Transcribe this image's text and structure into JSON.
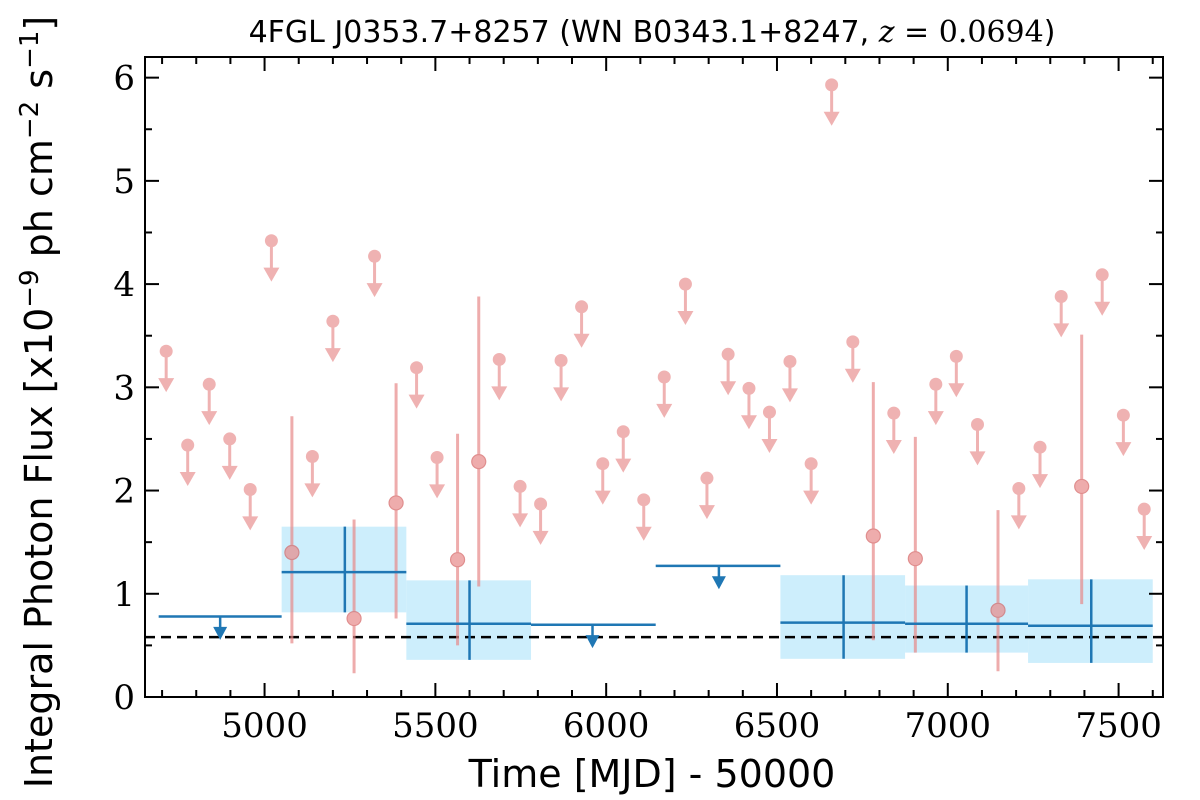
{
  "chart_data": {
    "type": "scatter",
    "title": "4FGL J0353.7+8257 (WN B0343.1+8247, z = 0.0694)",
    "title_parts": {
      "prefix": "4FGL J0353.7+8257 (WN B0343.1+8247, ",
      "z_symbol": "z",
      "z_equals": " = ",
      "z_value": "0.0694",
      "suffix": ")"
    },
    "xlabel": "Time [MJD] - 50000",
    "ylabel": "Integral Photon Flux [x10",
    "ylabel_parts": {
      "prefix": "Integral Photon Flux [x10",
      "exp1": "−9",
      "middle": " ph cm",
      "exp2": "−2",
      "after": " s",
      "exp3": "−1",
      "suffix": "]"
    },
    "xlim": [
      4650,
      7630
    ],
    "ylim": [
      0,
      6.2
    ],
    "xticks": [
      5000,
      5500,
      6000,
      6500,
      7000,
      7500
    ],
    "yticks": [
      0,
      1,
      2,
      3,
      4,
      5,
      6
    ],
    "grid": false,
    "mean_line_y": 0.58,
    "colors": {
      "short_bin": "#e88a8a",
      "long_bin": "#1f77b4",
      "band": "#cdeefc",
      "mean": "#000000"
    },
    "series": [
      {
        "kind": "short_bins",
        "detections": [
          {
            "x": 5080,
            "y": 1.4,
            "ylo": 0.52,
            "yhi": 2.72
          },
          {
            "x": 5262,
            "y": 0.76,
            "ylo": 0.23,
            "yhi": 1.72
          },
          {
            "x": 5385,
            "y": 1.88,
            "ylo": 0.76,
            "yhi": 3.04
          },
          {
            "x": 5565,
            "y": 1.33,
            "ylo": 0.5,
            "yhi": 2.55
          },
          {
            "x": 5627,
            "y": 2.28,
            "ylo": 1.07,
            "yhi": 3.88
          },
          {
            "x": 6782,
            "y": 1.56,
            "ylo": 0.55,
            "yhi": 3.05
          },
          {
            "x": 6905,
            "y": 1.34,
            "ylo": 0.43,
            "yhi": 2.52
          },
          {
            "x": 7147,
            "y": 0.84,
            "ylo": 0.25,
            "yhi": 1.81
          },
          {
            "x": 7392,
            "y": 2.04,
            "ylo": 0.9,
            "yhi": 3.51
          }
        ],
        "upper_limits": [
          {
            "x": 4712,
            "y": 3.35
          },
          {
            "x": 4775,
            "y": 2.44
          },
          {
            "x": 4838,
            "y": 3.03
          },
          {
            "x": 4898,
            "y": 2.5
          },
          {
            "x": 4958,
            "y": 2.01
          },
          {
            "x": 5020,
            "y": 4.42
          },
          {
            "x": 5140,
            "y": 2.33
          },
          {
            "x": 5200,
            "y": 3.64
          },
          {
            "x": 5322,
            "y": 4.27
          },
          {
            "x": 5445,
            "y": 3.19
          },
          {
            "x": 5505,
            "y": 2.32
          },
          {
            "x": 5687,
            "y": 3.27
          },
          {
            "x": 5748,
            "y": 2.04
          },
          {
            "x": 5808,
            "y": 1.87
          },
          {
            "x": 5868,
            "y": 3.26
          },
          {
            "x": 5928,
            "y": 3.78
          },
          {
            "x": 5990,
            "y": 2.26
          },
          {
            "x": 6050,
            "y": 2.57
          },
          {
            "x": 6110,
            "y": 1.91
          },
          {
            "x": 6170,
            "y": 3.1
          },
          {
            "x": 6232,
            "y": 4.0
          },
          {
            "x": 6295,
            "y": 2.12
          },
          {
            "x": 6357,
            "y": 3.32
          },
          {
            "x": 6418,
            "y": 2.99
          },
          {
            "x": 6478,
            "y": 2.76
          },
          {
            "x": 6538,
            "y": 3.25
          },
          {
            "x": 6600,
            "y": 2.26
          },
          {
            "x": 6660,
            "y": 5.93
          },
          {
            "x": 6722,
            "y": 3.44
          },
          {
            "x": 6842,
            "y": 2.75
          },
          {
            "x": 6965,
            "y": 3.03
          },
          {
            "x": 7025,
            "y": 3.3
          },
          {
            "x": 7087,
            "y": 2.64
          },
          {
            "x": 7208,
            "y": 2.02
          },
          {
            "x": 7270,
            "y": 2.42
          },
          {
            "x": 7332,
            "y": 3.88
          },
          {
            "x": 7452,
            "y": 4.09
          },
          {
            "x": 7514,
            "y": 2.73
          },
          {
            "x": 7575,
            "y": 1.82
          }
        ]
      },
      {
        "kind": "long_bins",
        "detections": [
          {
            "x0": 5050,
            "x1": 5415,
            "xc": 5235,
            "y": 1.21,
            "ylo": 0.82,
            "yhi": 1.65
          },
          {
            "x0": 5415,
            "x1": 5780,
            "xc": 5600,
            "y": 0.71,
            "ylo": 0.36,
            "yhi": 1.13
          },
          {
            "x0": 6510,
            "x1": 6875,
            "xc": 6695,
            "y": 0.72,
            "ylo": 0.37,
            "yhi": 1.18
          },
          {
            "x0": 6875,
            "x1": 7235,
            "xc": 7055,
            "y": 0.71,
            "ylo": 0.43,
            "yhi": 1.08
          },
          {
            "x0": 7235,
            "x1": 7600,
            "xc": 7420,
            "y": 0.69,
            "ylo": 0.33,
            "yhi": 1.14
          }
        ],
        "upper_limits": [
          {
            "x0": 4690,
            "x1": 5050,
            "xc": 4870,
            "y": 0.78
          },
          {
            "x0": 5780,
            "x1": 6145,
            "xc": 5960,
            "y": 0.7
          },
          {
            "x0": 6145,
            "x1": 6510,
            "xc": 6330,
            "y": 1.27
          }
        ]
      }
    ]
  }
}
